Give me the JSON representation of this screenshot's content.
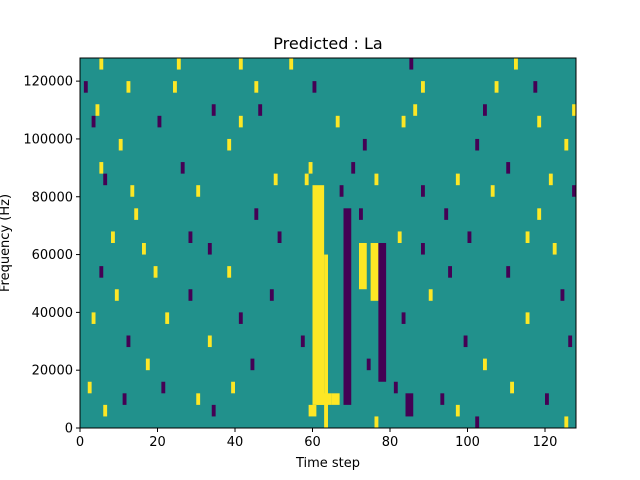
{
  "chart_data": {
    "type": "heatmap",
    "title": "Predicted : La",
    "xlabel": "Time step",
    "ylabel": "Frequency (Hz)",
    "xlim": [
      0,
      128
    ],
    "ylim": [
      0,
      128000
    ],
    "xticks": [
      0,
      20,
      40,
      60,
      80,
      100,
      120
    ],
    "yticks": [
      0,
      20000,
      40000,
      60000,
      80000,
      100000,
      120000
    ],
    "xtick_labels": [
      "0",
      "20",
      "40",
      "60",
      "80",
      "100",
      "120"
    ],
    "ytick_labels": [
      "0",
      "20000",
      "40000",
      "60000",
      "80000",
      "100000",
      "120000"
    ],
    "n_columns": 128,
    "n_rows": 32,
    "row_height_hz": 4000,
    "colors": {
      "background": "#21918c",
      "yellow": "#fde725",
      "purple": "#440154",
      "frame": "#000000"
    },
    "dense_bands": [
      {
        "color": "yellow",
        "time_start": 60,
        "time_end": 63,
        "freq_start": 8000,
        "freq_end": 84000
      },
      {
        "color": "yellow",
        "time_start": 63,
        "time_end": 64,
        "freq_start": 0,
        "freq_end": 60000
      },
      {
        "color": "yellow",
        "time_start": 61,
        "time_end": 65,
        "freq_start": 8000,
        "freq_end": 12000
      },
      {
        "color": "yellow",
        "time_start": 65,
        "time_end": 67,
        "freq_start": 8000,
        "freq_end": 12000
      },
      {
        "color": "yellow",
        "time_start": 59,
        "time_end": 61,
        "freq_start": 4000,
        "freq_end": 8000
      },
      {
        "color": "yellow",
        "time_start": 75,
        "time_end": 77,
        "freq_start": 44000,
        "freq_end": 64000
      },
      {
        "color": "yellow",
        "time_start": 72,
        "time_end": 74,
        "freq_start": 48000,
        "freq_end": 64000
      },
      {
        "color": "purple",
        "time_start": 68,
        "time_end": 70,
        "freq_start": 8000,
        "freq_end": 76000
      },
      {
        "color": "purple",
        "time_start": 84,
        "time_end": 86,
        "freq_start": 4000,
        "freq_end": 12000
      },
      {
        "color": "purple",
        "time_start": 77,
        "time_end": 79,
        "freq_start": 16000,
        "freq_end": 64000
      }
    ],
    "cells": [
      {
        "t": 5,
        "f": 124000,
        "c": "yellow"
      },
      {
        "t": 25,
        "f": 124000,
        "c": "yellow"
      },
      {
        "t": 41,
        "f": 124000,
        "c": "yellow"
      },
      {
        "t": 54,
        "f": 124000,
        "c": "yellow"
      },
      {
        "t": 85,
        "f": 124000,
        "c": "purple"
      },
      {
        "t": 112,
        "f": 124000,
        "c": "yellow"
      },
      {
        "t": 1,
        "f": 116000,
        "c": "purple"
      },
      {
        "t": 12,
        "f": 116000,
        "c": "yellow"
      },
      {
        "t": 24,
        "f": 116000,
        "c": "yellow"
      },
      {
        "t": 45,
        "f": 116000,
        "c": "yellow"
      },
      {
        "t": 60,
        "f": 116000,
        "c": "purple"
      },
      {
        "t": 88,
        "f": 116000,
        "c": "yellow"
      },
      {
        "t": 107,
        "f": 116000,
        "c": "yellow"
      },
      {
        "t": 117,
        "f": 116000,
        "c": "purple"
      },
      {
        "t": 4,
        "f": 108000,
        "c": "yellow"
      },
      {
        "t": 34,
        "f": 108000,
        "c": "purple"
      },
      {
        "t": 46,
        "f": 108000,
        "c": "purple"
      },
      {
        "t": 86,
        "f": 108000,
        "c": "yellow"
      },
      {
        "t": 104,
        "f": 108000,
        "c": "purple"
      },
      {
        "t": 127,
        "f": 108000,
        "c": "yellow"
      },
      {
        "t": 3,
        "f": 104000,
        "c": "purple"
      },
      {
        "t": 20,
        "f": 104000,
        "c": "purple"
      },
      {
        "t": 41,
        "f": 104000,
        "c": "yellow"
      },
      {
        "t": 66,
        "f": 104000,
        "c": "yellow"
      },
      {
        "t": 83,
        "f": 104000,
        "c": "yellow"
      },
      {
        "t": 118,
        "f": 104000,
        "c": "yellow"
      },
      {
        "t": 10,
        "f": 96000,
        "c": "yellow"
      },
      {
        "t": 38,
        "f": 96000,
        "c": "yellow"
      },
      {
        "t": 73,
        "f": 96000,
        "c": "purple"
      },
      {
        "t": 102,
        "f": 96000,
        "c": "purple"
      },
      {
        "t": 125,
        "f": 96000,
        "c": "yellow"
      },
      {
        "t": 5,
        "f": 88000,
        "c": "yellow"
      },
      {
        "t": 26,
        "f": 88000,
        "c": "purple"
      },
      {
        "t": 59,
        "f": 88000,
        "c": "yellow"
      },
      {
        "t": 70,
        "f": 88000,
        "c": "purple"
      },
      {
        "t": 110,
        "f": 88000,
        "c": "purple"
      },
      {
        "t": 6,
        "f": 84000,
        "c": "purple"
      },
      {
        "t": 50,
        "f": 84000,
        "c": "yellow"
      },
      {
        "t": 58,
        "f": 84000,
        "c": "yellow"
      },
      {
        "t": 76,
        "f": 84000,
        "c": "yellow"
      },
      {
        "t": 97,
        "f": 84000,
        "c": "yellow"
      },
      {
        "t": 121,
        "f": 84000,
        "c": "yellow"
      },
      {
        "t": 13,
        "f": 80000,
        "c": "yellow"
      },
      {
        "t": 30,
        "f": 80000,
        "c": "yellow"
      },
      {
        "t": 67,
        "f": 80000,
        "c": "purple"
      },
      {
        "t": 88,
        "f": 80000,
        "c": "purple"
      },
      {
        "t": 106,
        "f": 80000,
        "c": "yellow"
      },
      {
        "t": 127,
        "f": 80000,
        "c": "purple"
      },
      {
        "t": 14,
        "f": 72000,
        "c": "yellow"
      },
      {
        "t": 45,
        "f": 72000,
        "c": "purple"
      },
      {
        "t": 72,
        "f": 72000,
        "c": "purple"
      },
      {
        "t": 94,
        "f": 72000,
        "c": "purple"
      },
      {
        "t": 118,
        "f": 72000,
        "c": "yellow"
      },
      {
        "t": 8,
        "f": 64000,
        "c": "yellow"
      },
      {
        "t": 28,
        "f": 64000,
        "c": "purple"
      },
      {
        "t": 51,
        "f": 64000,
        "c": "purple"
      },
      {
        "t": 82,
        "f": 64000,
        "c": "yellow"
      },
      {
        "t": 100,
        "f": 64000,
        "c": "purple"
      },
      {
        "t": 115,
        "f": 64000,
        "c": "yellow"
      },
      {
        "t": 16,
        "f": 60000,
        "c": "yellow"
      },
      {
        "t": 33,
        "f": 60000,
        "c": "purple"
      },
      {
        "t": 88,
        "f": 60000,
        "c": "purple"
      },
      {
        "t": 122,
        "f": 60000,
        "c": "yellow"
      },
      {
        "t": 5,
        "f": 52000,
        "c": "purple"
      },
      {
        "t": 19,
        "f": 52000,
        "c": "yellow"
      },
      {
        "t": 38,
        "f": 52000,
        "c": "yellow"
      },
      {
        "t": 95,
        "f": 52000,
        "c": "purple"
      },
      {
        "t": 110,
        "f": 52000,
        "c": "purple"
      },
      {
        "t": 9,
        "f": 44000,
        "c": "yellow"
      },
      {
        "t": 28,
        "f": 44000,
        "c": "purple"
      },
      {
        "t": 49,
        "f": 44000,
        "c": "purple"
      },
      {
        "t": 90,
        "f": 44000,
        "c": "yellow"
      },
      {
        "t": 124,
        "f": 44000,
        "c": "purple"
      },
      {
        "t": 3,
        "f": 36000,
        "c": "yellow"
      },
      {
        "t": 22,
        "f": 36000,
        "c": "yellow"
      },
      {
        "t": 41,
        "f": 36000,
        "c": "purple"
      },
      {
        "t": 83,
        "f": 36000,
        "c": "purple"
      },
      {
        "t": 115,
        "f": 36000,
        "c": "yellow"
      },
      {
        "t": 12,
        "f": 28000,
        "c": "purple"
      },
      {
        "t": 33,
        "f": 28000,
        "c": "yellow"
      },
      {
        "t": 57,
        "f": 28000,
        "c": "purple"
      },
      {
        "t": 99,
        "f": 28000,
        "c": "purple"
      },
      {
        "t": 126,
        "f": 28000,
        "c": "purple"
      },
      {
        "t": 17,
        "f": 20000,
        "c": "yellow"
      },
      {
        "t": 44,
        "f": 20000,
        "c": "purple"
      },
      {
        "t": 74,
        "f": 20000,
        "c": "purple"
      },
      {
        "t": 104,
        "f": 20000,
        "c": "yellow"
      },
      {
        "t": 2,
        "f": 12000,
        "c": "yellow"
      },
      {
        "t": 21,
        "f": 12000,
        "c": "purple"
      },
      {
        "t": 39,
        "f": 12000,
        "c": "yellow"
      },
      {
        "t": 81,
        "f": 12000,
        "c": "purple"
      },
      {
        "t": 111,
        "f": 12000,
        "c": "yellow"
      },
      {
        "t": 11,
        "f": 8000,
        "c": "purple"
      },
      {
        "t": 30,
        "f": 8000,
        "c": "yellow"
      },
      {
        "t": 93,
        "f": 8000,
        "c": "purple"
      },
      {
        "t": 120,
        "f": 8000,
        "c": "purple"
      },
      {
        "t": 6,
        "f": 4000,
        "c": "yellow"
      },
      {
        "t": 34,
        "f": 4000,
        "c": "purple"
      },
      {
        "t": 97,
        "f": 4000,
        "c": "yellow"
      },
      {
        "t": 76,
        "f": 0,
        "c": "yellow"
      },
      {
        "t": 102,
        "f": 0,
        "c": "purple"
      },
      {
        "t": 125,
        "f": 0,
        "c": "yellow"
      }
    ]
  }
}
